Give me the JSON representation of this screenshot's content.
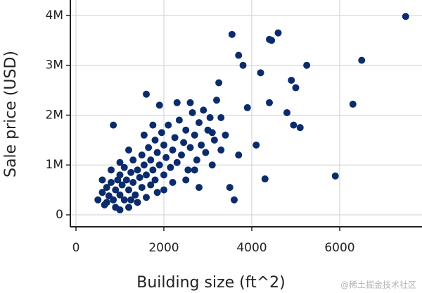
{
  "chart_data": {
    "type": "scatter",
    "xlabel": "Building size (ft^2)",
    "ylabel": "Sale price (USD)",
    "color": "#0b2c6c",
    "grid": true,
    "watermark": "@稀土掘金技术社区",
    "xlim": [
      -128,
      7872
    ],
    "ylim": [
      -240000,
      4310000
    ],
    "xticks": [
      0,
      2000,
      4000,
      6000
    ],
    "yticks": [
      {
        "value": 0,
        "label": "0"
      },
      {
        "value": 1000000,
        "label": "1M"
      },
      {
        "value": 2000000,
        "label": "2M"
      },
      {
        "value": 3000000,
        "label": "3M"
      },
      {
        "value": 4000000,
        "label": "4M"
      }
    ],
    "x": [
      500,
      600,
      650,
      700,
      750,
      800,
      850,
      900,
      950,
      1000,
      1000,
      1050,
      1100,
      1100,
      1150,
      1200,
      1250,
      1300,
      1300,
      1350,
      1400,
      1450,
      1500,
      1500,
      1550,
      1600,
      1650,
      1700,
      1700,
      1750,
      1800,
      1800,
      1850,
      1900,
      1950,
      2000,
      2000,
      2050,
      2100,
      2150,
      2200,
      2250,
      2300,
      2350,
      2400,
      2450,
      2500,
      2550,
      2600,
      2650,
      2700,
      2750,
      2800,
      2850,
      2900,
      2950,
      3000,
      3050,
      3100,
      3150,
      1250,
      900,
      1400,
      1600,
      2000,
      2200,
      2500,
      1750,
      1550,
      2300,
      1200,
      1000,
      800,
      600,
      1850,
      2700,
      3300,
      3400,
      3200,
      2600,
      7500,
      6500,
      6300,
      5900,
      5250,
      4600,
      4400,
      4450,
      3550,
      3700,
      3800,
      4900,
      5000,
      4950,
      5100,
      4300,
      3600,
      1600,
      850,
      1900,
      4200,
      3250,
      4400,
      3900,
      4800,
      3300,
      3100,
      4100,
      3700,
      3500,
      2800,
      700,
      1000,
      1200
    ],
    "values": [
      300000,
      450000,
      200000,
      550000,
      380000,
      650000,
      300000,
      500000,
      700000,
      400000,
      800000,
      600000,
      300000,
      950000,
      700000,
      500000,
      850000,
      650000,
      1100000,
      400000,
      900000,
      750000,
      1200000,
      550000,
      1000000,
      800000,
      1350000,
      600000,
      1100000,
      900000,
      1500000,
      700000,
      1250000,
      1000000,
      1650000,
      800000,
      1400000,
      1150000,
      1800000,
      950000,
      1300000,
      1550000,
      1050000,
      1900000,
      1200000,
      1450000,
      1700000,
      900000,
      1350000,
      2050000,
      1600000,
      1100000,
      1850000,
      1400000,
      2100000,
      1250000,
      1700000,
      1950000,
      1000000,
      1500000,
      300000,
      150000,
      250000,
      350000,
      500000,
      650000,
      700000,
      1800000,
      1600000,
      2250000,
      1300000,
      1050000,
      900000,
      700000,
      450000,
      900000,
      1300000,
      1600000,
      2300000,
      2250000,
      3980000,
      3100000,
      2220000,
      780000,
      3000000,
      3650000,
      3520000,
      3500000,
      3620000,
      3200000,
      3000000,
      2700000,
      2550000,
      1800000,
      1750000,
      720000,
      300000,
      2420000,
      1800000,
      2200000,
      2850000,
      2650000,
      2250000,
      2150000,
      2050000,
      1950000,
      1650000,
      1400000,
      1200000,
      550000,
      550000,
      250000,
      100000,
      150000
    ]
  }
}
